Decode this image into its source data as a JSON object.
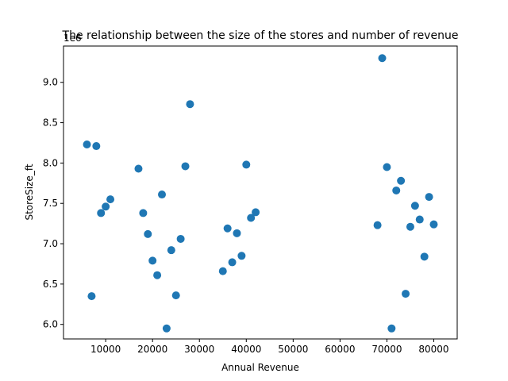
{
  "chart_data": {
    "type": "scatter",
    "title": "The relationship between the size of the stores and number of revenue",
    "xlabel": "Annual Revenue",
    "ylabel": "StoreSize_ft",
    "y_offset_label": "1e6",
    "xlim": [
      1000,
      85000
    ],
    "ylim": [
      5.82,
      9.45
    ],
    "xticks": [
      10000,
      20000,
      30000,
      40000,
      50000,
      60000,
      70000,
      80000
    ],
    "xtick_labels": [
      "10000",
      "20000",
      "30000",
      "40000",
      "50000",
      "60000",
      "70000",
      "80000"
    ],
    "yticks": [
      6.0,
      6.5,
      7.0,
      7.5,
      8.0,
      8.5,
      9.0
    ],
    "ytick_labels": [
      "6.0",
      "6.5",
      "7.0",
      "7.5",
      "8.0",
      "8.5",
      "9.0"
    ],
    "grid": false,
    "marker_color": "#1f77b4",
    "points": [
      {
        "x": 6000,
        "y": 8.23
      },
      {
        "x": 7000,
        "y": 6.35
      },
      {
        "x": 8000,
        "y": 8.21
      },
      {
        "x": 9000,
        "y": 7.38
      },
      {
        "x": 10000,
        "y": 7.46
      },
      {
        "x": 11000,
        "y": 7.55
      },
      {
        "x": 17000,
        "y": 7.93
      },
      {
        "x": 18000,
        "y": 7.38
      },
      {
        "x": 19000,
        "y": 7.12
      },
      {
        "x": 20000,
        "y": 6.79
      },
      {
        "x": 21000,
        "y": 6.61
      },
      {
        "x": 22000,
        "y": 7.61
      },
      {
        "x": 23000,
        "y": 5.95
      },
      {
        "x": 24000,
        "y": 6.92
      },
      {
        "x": 25000,
        "y": 6.36
      },
      {
        "x": 26000,
        "y": 7.06
      },
      {
        "x": 27000,
        "y": 7.96
      },
      {
        "x": 28000,
        "y": 8.73
      },
      {
        "x": 35000,
        "y": 6.66
      },
      {
        "x": 36000,
        "y": 7.19
      },
      {
        "x": 37000,
        "y": 6.77
      },
      {
        "x": 38000,
        "y": 7.13
      },
      {
        "x": 39000,
        "y": 6.85
      },
      {
        "x": 40000,
        "y": 7.98
      },
      {
        "x": 41000,
        "y": 7.32
      },
      {
        "x": 42000,
        "y": 7.39
      },
      {
        "x": 68000,
        "y": 7.23
      },
      {
        "x": 69000,
        "y": 9.3
      },
      {
        "x": 70000,
        "y": 7.95
      },
      {
        "x": 71000,
        "y": 5.95
      },
      {
        "x": 72000,
        "y": 7.66
      },
      {
        "x": 73000,
        "y": 7.78
      },
      {
        "x": 74000,
        "y": 6.38
      },
      {
        "x": 75000,
        "y": 7.21
      },
      {
        "x": 76000,
        "y": 7.47
      },
      {
        "x": 77000,
        "y": 7.3
      },
      {
        "x": 78000,
        "y": 6.84
      },
      {
        "x": 79000,
        "y": 7.58
      },
      {
        "x": 80000,
        "y": 7.24
      }
    ]
  }
}
